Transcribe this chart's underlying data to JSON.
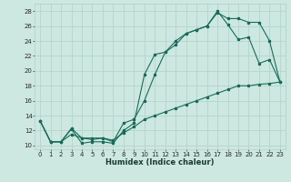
{
  "xlabel": "Humidex (Indice chaleur)",
  "bg_color": "#cce8e0",
  "line_color": "#1a6b5a",
  "grid_color": "#b0d0c8",
  "xlim": [
    -0.5,
    23.5
  ],
  "ylim": [
    9.5,
    29.0
  ],
  "yticks": [
    10,
    12,
    14,
    16,
    18,
    20,
    22,
    24,
    26,
    28
  ],
  "xticks": [
    0,
    1,
    2,
    3,
    4,
    5,
    6,
    7,
    8,
    9,
    10,
    11,
    12,
    13,
    14,
    15,
    16,
    17,
    18,
    19,
    20,
    21,
    22,
    23
  ],
  "line1_x": [
    0,
    1,
    2,
    3,
    4,
    5,
    6,
    7,
    8,
    9,
    10,
    11,
    12,
    13,
    14,
    15,
    16,
    17,
    18,
    19,
    20,
    21,
    22,
    23
  ],
  "line1_y": [
    13.3,
    10.5,
    10.5,
    12.2,
    10.3,
    10.5,
    10.5,
    10.3,
    12.0,
    13.0,
    19.5,
    22.2,
    22.5,
    24.0,
    25.0,
    25.5,
    26.0,
    28.0,
    26.2,
    24.2,
    24.5,
    21.0,
    21.5,
    18.5
  ],
  "line2_x": [
    0,
    1,
    2,
    3,
    4,
    5,
    6,
    7,
    8,
    9,
    10,
    11,
    12,
    13,
    14,
    15,
    16,
    17,
    18,
    19,
    20,
    21,
    22,
    23
  ],
  "line2_y": [
    13.3,
    10.5,
    10.5,
    12.3,
    11.0,
    10.8,
    11.0,
    10.5,
    13.0,
    13.5,
    16.0,
    19.5,
    22.5,
    23.5,
    25.0,
    25.5,
    26.0,
    27.8,
    27.0,
    27.0,
    26.5,
    26.5,
    24.0,
    18.5
  ],
  "line3_x": [
    0,
    1,
    2,
    3,
    4,
    5,
    6,
    7,
    8,
    9,
    10,
    11,
    12,
    13,
    14,
    15,
    16,
    17,
    18,
    19,
    20,
    21,
    22,
    23
  ],
  "line3_y": [
    13.3,
    10.5,
    10.5,
    11.5,
    11.0,
    11.0,
    11.0,
    10.7,
    11.7,
    12.5,
    13.5,
    14.0,
    14.5,
    15.0,
    15.5,
    16.0,
    16.5,
    17.0,
    17.5,
    18.0,
    18.0,
    18.2,
    18.3,
    18.5
  ]
}
